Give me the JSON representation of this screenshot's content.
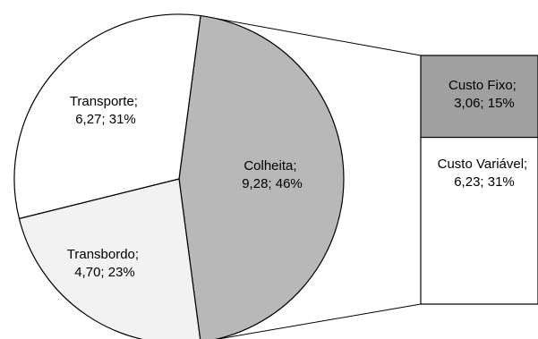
{
  "chart_data": {
    "type": "pie",
    "variant": "pie-of-bar",
    "pie": {
      "slices": [
        {
          "name": "Colheita",
          "value": 9.28,
          "percent": "46%",
          "color": "#b8b8b8",
          "label_line1": "Colheita;",
          "label_line2": "9,28; 46%"
        },
        {
          "name": "Transbordo",
          "value": 4.7,
          "percent": "23%",
          "color": "#f2f2f2",
          "label_line1": "Transbordo;",
          "label_line2": "4,70; 23%"
        },
        {
          "name": "Transporte",
          "value": 6.27,
          "percent": "31%",
          "color": "#ffffff",
          "label_line1": "Transporte;",
          "label_line2": "6,27; 31%"
        }
      ]
    },
    "bar": {
      "segments": [
        {
          "name": "Custo Fixo",
          "value": 3.06,
          "percent": "15%",
          "color": "#a0a0a0",
          "label_line1": "Custo Fixo;",
          "label_line2": "3,06; 15%"
        },
        {
          "name": "Custo Variável",
          "value": 6.23,
          "percent": "31%",
          "color": "#ffffff",
          "label_line1": "Custo Variável;",
          "label_line2": "6,23; 31%"
        }
      ]
    },
    "stroke_color": "#000000"
  }
}
